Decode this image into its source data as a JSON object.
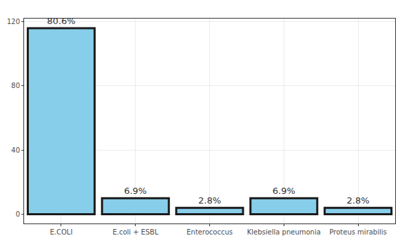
{
  "chart_data": {
    "type": "bar",
    "categories": [
      "E.COLI",
      "E.coli + ESBL",
      "Enterococcus",
      "Klebsiella pneumonia",
      "Proteus mirabilis"
    ],
    "values": [
      116,
      10,
      4,
      10,
      4
    ],
    "value_labels": [
      "80.6%",
      "6.9%",
      "2.8%",
      "6.9%",
      "2.8%"
    ],
    "color": "#87CEEB",
    "ylim": [
      -5.8,
      122
    ],
    "yticks": [
      0,
      40,
      80,
      120
    ],
    "grid": true
  }
}
